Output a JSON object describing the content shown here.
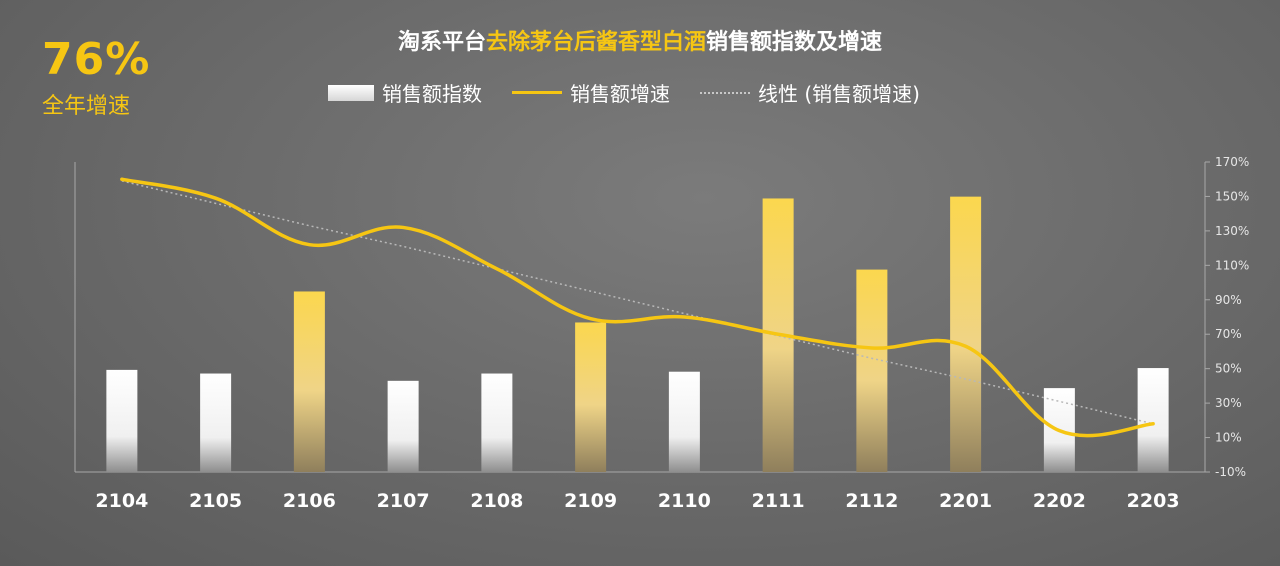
{
  "kpi": {
    "value": "76%",
    "label": "全年增速"
  },
  "title": {
    "part1": "淘系平台",
    "highlight": "去除茅台后酱香型白酒",
    "part2": "销售额指数及增速"
  },
  "legend": {
    "bar": "销售额指数",
    "line": "销售额增速",
    "trend": "线性 (销售额增速)"
  },
  "colors": {
    "accent": "#f6c613",
    "white_bar": "#ffffff",
    "gold_bar": "#f6cf45",
    "trend": "#b8b8b8"
  },
  "chart_data": {
    "type": "bar",
    "categories": [
      "2104",
      "2105",
      "2106",
      "2107",
      "2108",
      "2109",
      "2110",
      "2111",
      "2112",
      "2201",
      "2202",
      "2203"
    ],
    "series": [
      {
        "name": "销售额指数",
        "type": "bar",
        "values": [
          56,
          54,
          99,
          50,
          54,
          82,
          55,
          150,
          111,
          151,
          46,
          57
        ],
        "highlighted": [
          false,
          false,
          true,
          false,
          false,
          true,
          false,
          true,
          true,
          true,
          false,
          false
        ]
      },
      {
        "name": "销售额增速",
        "type": "line",
        "axis": "right",
        "values": [
          160,
          149,
          122,
          132,
          108,
          79,
          80,
          70,
          62,
          63,
          14,
          18
        ]
      },
      {
        "name": "线性 (销售额增速)",
        "type": "trendline",
        "axis": "right",
        "values": [
          159,
          146,
          133,
          121,
          108,
          95,
          82,
          69,
          56,
          44,
          31,
          18
        ]
      }
    ],
    "left_axis": {
      "range": [
        0,
        170
      ]
    },
    "right_axis": {
      "range": [
        -10,
        170
      ],
      "ticks": [
        "-10%",
        "10%",
        "30%",
        "50%",
        "70%",
        "90%",
        "110%",
        "130%",
        "150%",
        "170%"
      ]
    },
    "legend_position": "top"
  }
}
